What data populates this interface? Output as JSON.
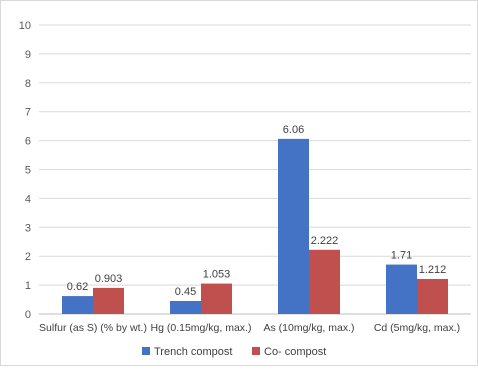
{
  "chart_data": {
    "type": "bar",
    "categories": [
      "Sulfur (as S) (% by wt.)",
      "Hg (0.15mg/kg, max.)",
      "As (10mg/kg, max.)",
      "Cd (5mg/kg, max.)"
    ],
    "series": [
      {
        "name": "Trench compost",
        "values": [
          0.62,
          0.45,
          6.06,
          1.71
        ],
        "color": "#4472C4"
      },
      {
        "name": "Co- compost",
        "values": [
          0.903,
          1.053,
          2.222,
          1.212
        ],
        "color": "#C0504D"
      }
    ],
    "data_labels": [
      [
        "0.62",
        "0.45",
        "6.06",
        "1.71"
      ],
      [
        "0.903",
        "1.053",
        "2.222",
        "1.212"
      ]
    ],
    "y_ticks": [
      "0",
      "1",
      "2",
      "3",
      "4",
      "5",
      "6",
      "7",
      "8",
      "9",
      "10"
    ],
    "ylim": [
      0,
      10
    ],
    "grid": true,
    "legend_position": "bottom",
    "title": "",
    "xlabel": "",
    "ylabel": ""
  }
}
